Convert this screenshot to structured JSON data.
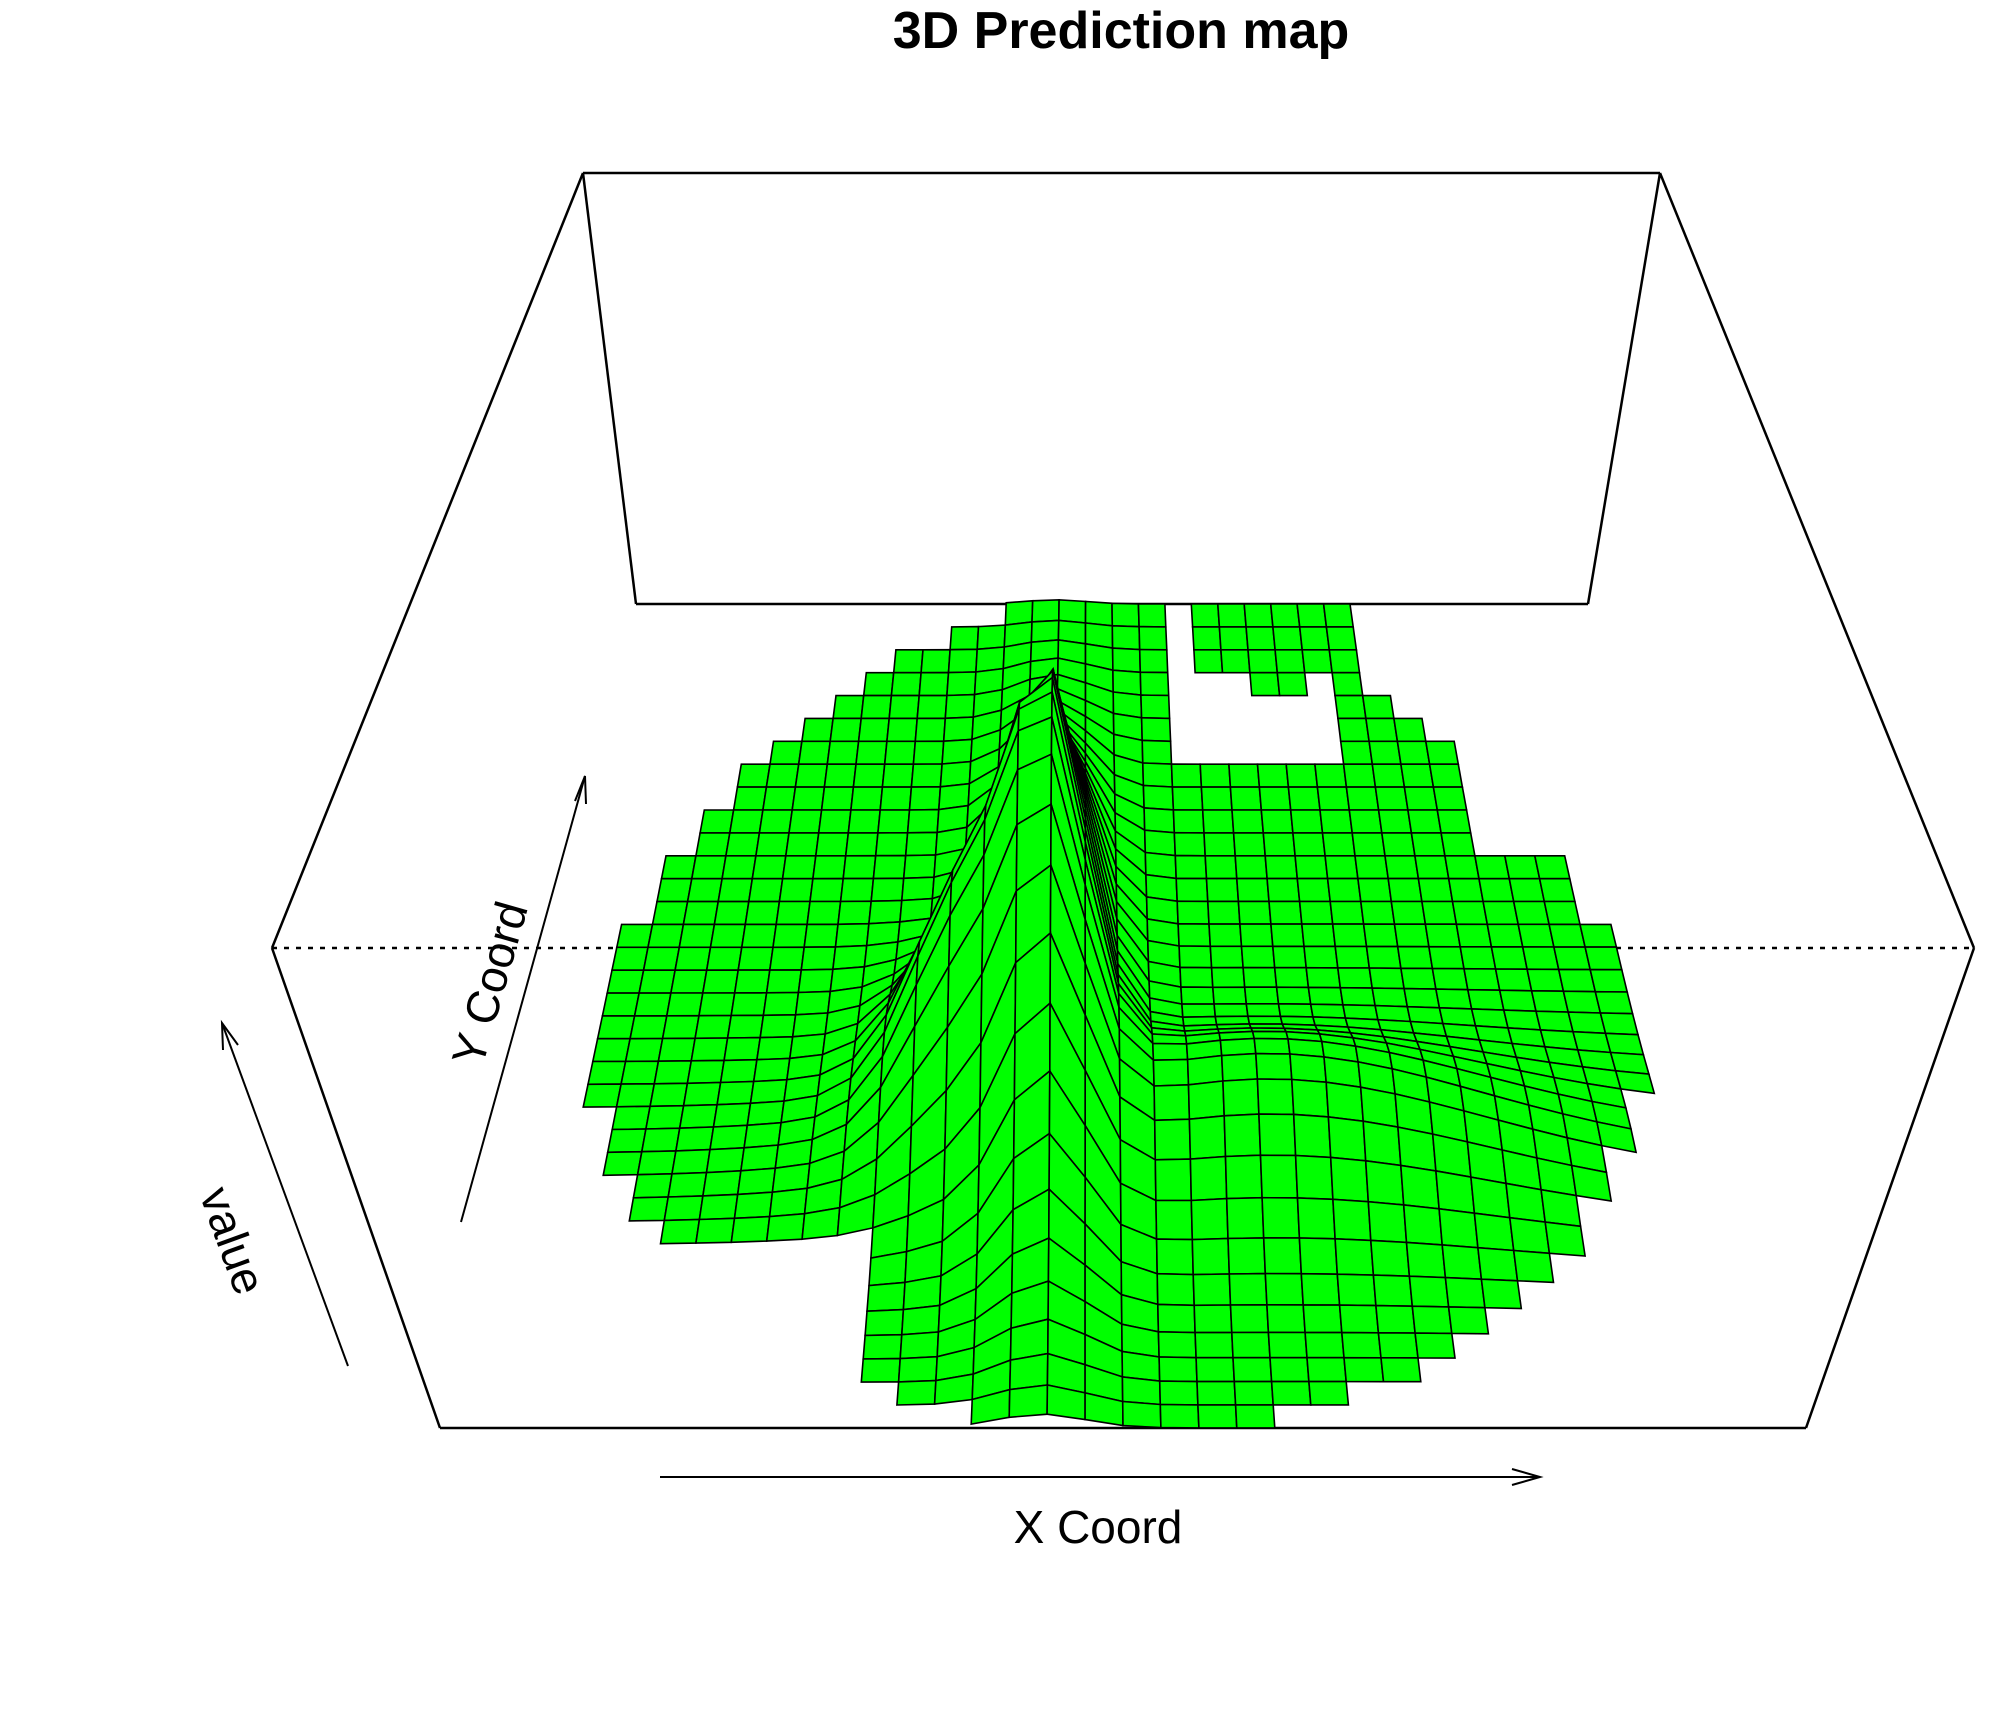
{
  "chart_data": {
    "type": "surface",
    "title": "3D Prediction map",
    "xlabel": "X Coord",
    "ylabel": "Y Coord",
    "zlabel": "value",
    "surface_color": "#00ff00",
    "mesh_color": "#000000",
    "box": true,
    "ticks": false,
    "description_features": [
      "flat plateau",
      "ridge peak",
      "secondary bump"
    ]
  }
}
